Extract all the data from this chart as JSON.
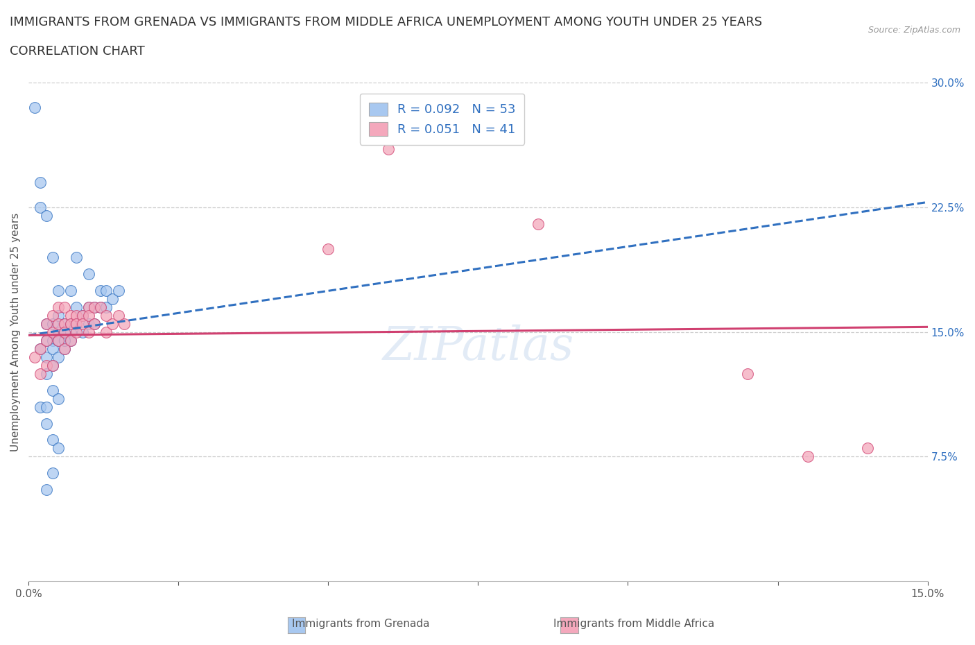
{
  "title_line1": "IMMIGRANTS FROM GRENADA VS IMMIGRANTS FROM MIDDLE AFRICA UNEMPLOYMENT AMONG YOUTH UNDER 25 YEARS",
  "title_line2": "CORRELATION CHART",
  "source": "Source: ZipAtlas.com",
  "ylabel": "Unemployment Among Youth under 25 years",
  "legend_label1": "Immigrants from Grenada",
  "legend_label2": "Immigrants from Middle Africa",
  "R1": 0.092,
  "N1": 53,
  "R2": 0.051,
  "N2": 41,
  "color1": "#a8c8f0",
  "color2": "#f4a8bc",
  "line_color1": "#3070c0",
  "line_color2": "#d04070",
  "xlim": [
    0.0,
    0.15
  ],
  "ylim": [
    0.0,
    0.3
  ],
  "ytick_right": [
    0.075,
    0.15,
    0.225,
    0.3
  ],
  "ytick_right_labels": [
    "7.5%",
    "15.0%",
    "22.5%",
    "30.0%"
  ],
  "background_color": "#ffffff",
  "grenada_x": [
    0.001,
    0.002,
    0.002,
    0.002,
    0.003,
    0.003,
    0.003,
    0.003,
    0.003,
    0.004,
    0.004,
    0.004,
    0.004,
    0.004,
    0.005,
    0.005,
    0.005,
    0.005,
    0.005,
    0.006,
    0.006,
    0.006,
    0.006,
    0.007,
    0.007,
    0.007,
    0.007,
    0.008,
    0.008,
    0.008,
    0.009,
    0.009,
    0.01,
    0.01,
    0.01,
    0.011,
    0.011,
    0.012,
    0.012,
    0.013,
    0.013,
    0.014,
    0.015,
    0.002,
    0.003,
    0.004,
    0.005,
    0.004,
    0.003,
    0.005,
    0.006,
    0.004,
    0.003
  ],
  "grenada_y": [
    0.285,
    0.225,
    0.14,
    0.105,
    0.155,
    0.145,
    0.135,
    0.125,
    0.095,
    0.155,
    0.145,
    0.14,
    0.13,
    0.085,
    0.16,
    0.15,
    0.145,
    0.135,
    0.08,
    0.155,
    0.15,
    0.145,
    0.14,
    0.175,
    0.155,
    0.15,
    0.145,
    0.195,
    0.165,
    0.155,
    0.16,
    0.15,
    0.185,
    0.165,
    0.155,
    0.165,
    0.155,
    0.175,
    0.165,
    0.175,
    0.165,
    0.17,
    0.175,
    0.24,
    0.22,
    0.195,
    0.175,
    0.115,
    0.105,
    0.11,
    0.145,
    0.065,
    0.055
  ],
  "middle_africa_x": [
    0.001,
    0.002,
    0.002,
    0.003,
    0.003,
    0.003,
    0.004,
    0.004,
    0.004,
    0.005,
    0.005,
    0.005,
    0.006,
    0.006,
    0.006,
    0.006,
    0.007,
    0.007,
    0.007,
    0.008,
    0.008,
    0.008,
    0.009,
    0.009,
    0.01,
    0.01,
    0.01,
    0.011,
    0.011,
    0.012,
    0.013,
    0.013,
    0.014,
    0.015,
    0.016,
    0.05,
    0.085,
    0.12,
    0.13,
    0.14,
    0.06
  ],
  "middle_africa_y": [
    0.135,
    0.14,
    0.125,
    0.155,
    0.145,
    0.13,
    0.16,
    0.15,
    0.13,
    0.165,
    0.155,
    0.145,
    0.165,
    0.155,
    0.15,
    0.14,
    0.16,
    0.155,
    0.145,
    0.16,
    0.155,
    0.15,
    0.16,
    0.155,
    0.165,
    0.16,
    0.15,
    0.165,
    0.155,
    0.165,
    0.16,
    0.15,
    0.155,
    0.16,
    0.155,
    0.2,
    0.215,
    0.125,
    0.075,
    0.08,
    0.26
  ],
  "watermark": "ZIPatlas",
  "title_fontsize": 13,
  "label_fontsize": 11,
  "tick_fontsize": 11,
  "legend_fontsize": 13,
  "trendline_blue_x0": 0.0,
  "trendline_blue_y0": 0.148,
  "trendline_blue_x1": 0.15,
  "trendline_blue_y1": 0.228,
  "trendline_pink_x0": 0.0,
  "trendline_pink_y0": 0.148,
  "trendline_pink_x1": 0.15,
  "trendline_pink_y1": 0.153
}
